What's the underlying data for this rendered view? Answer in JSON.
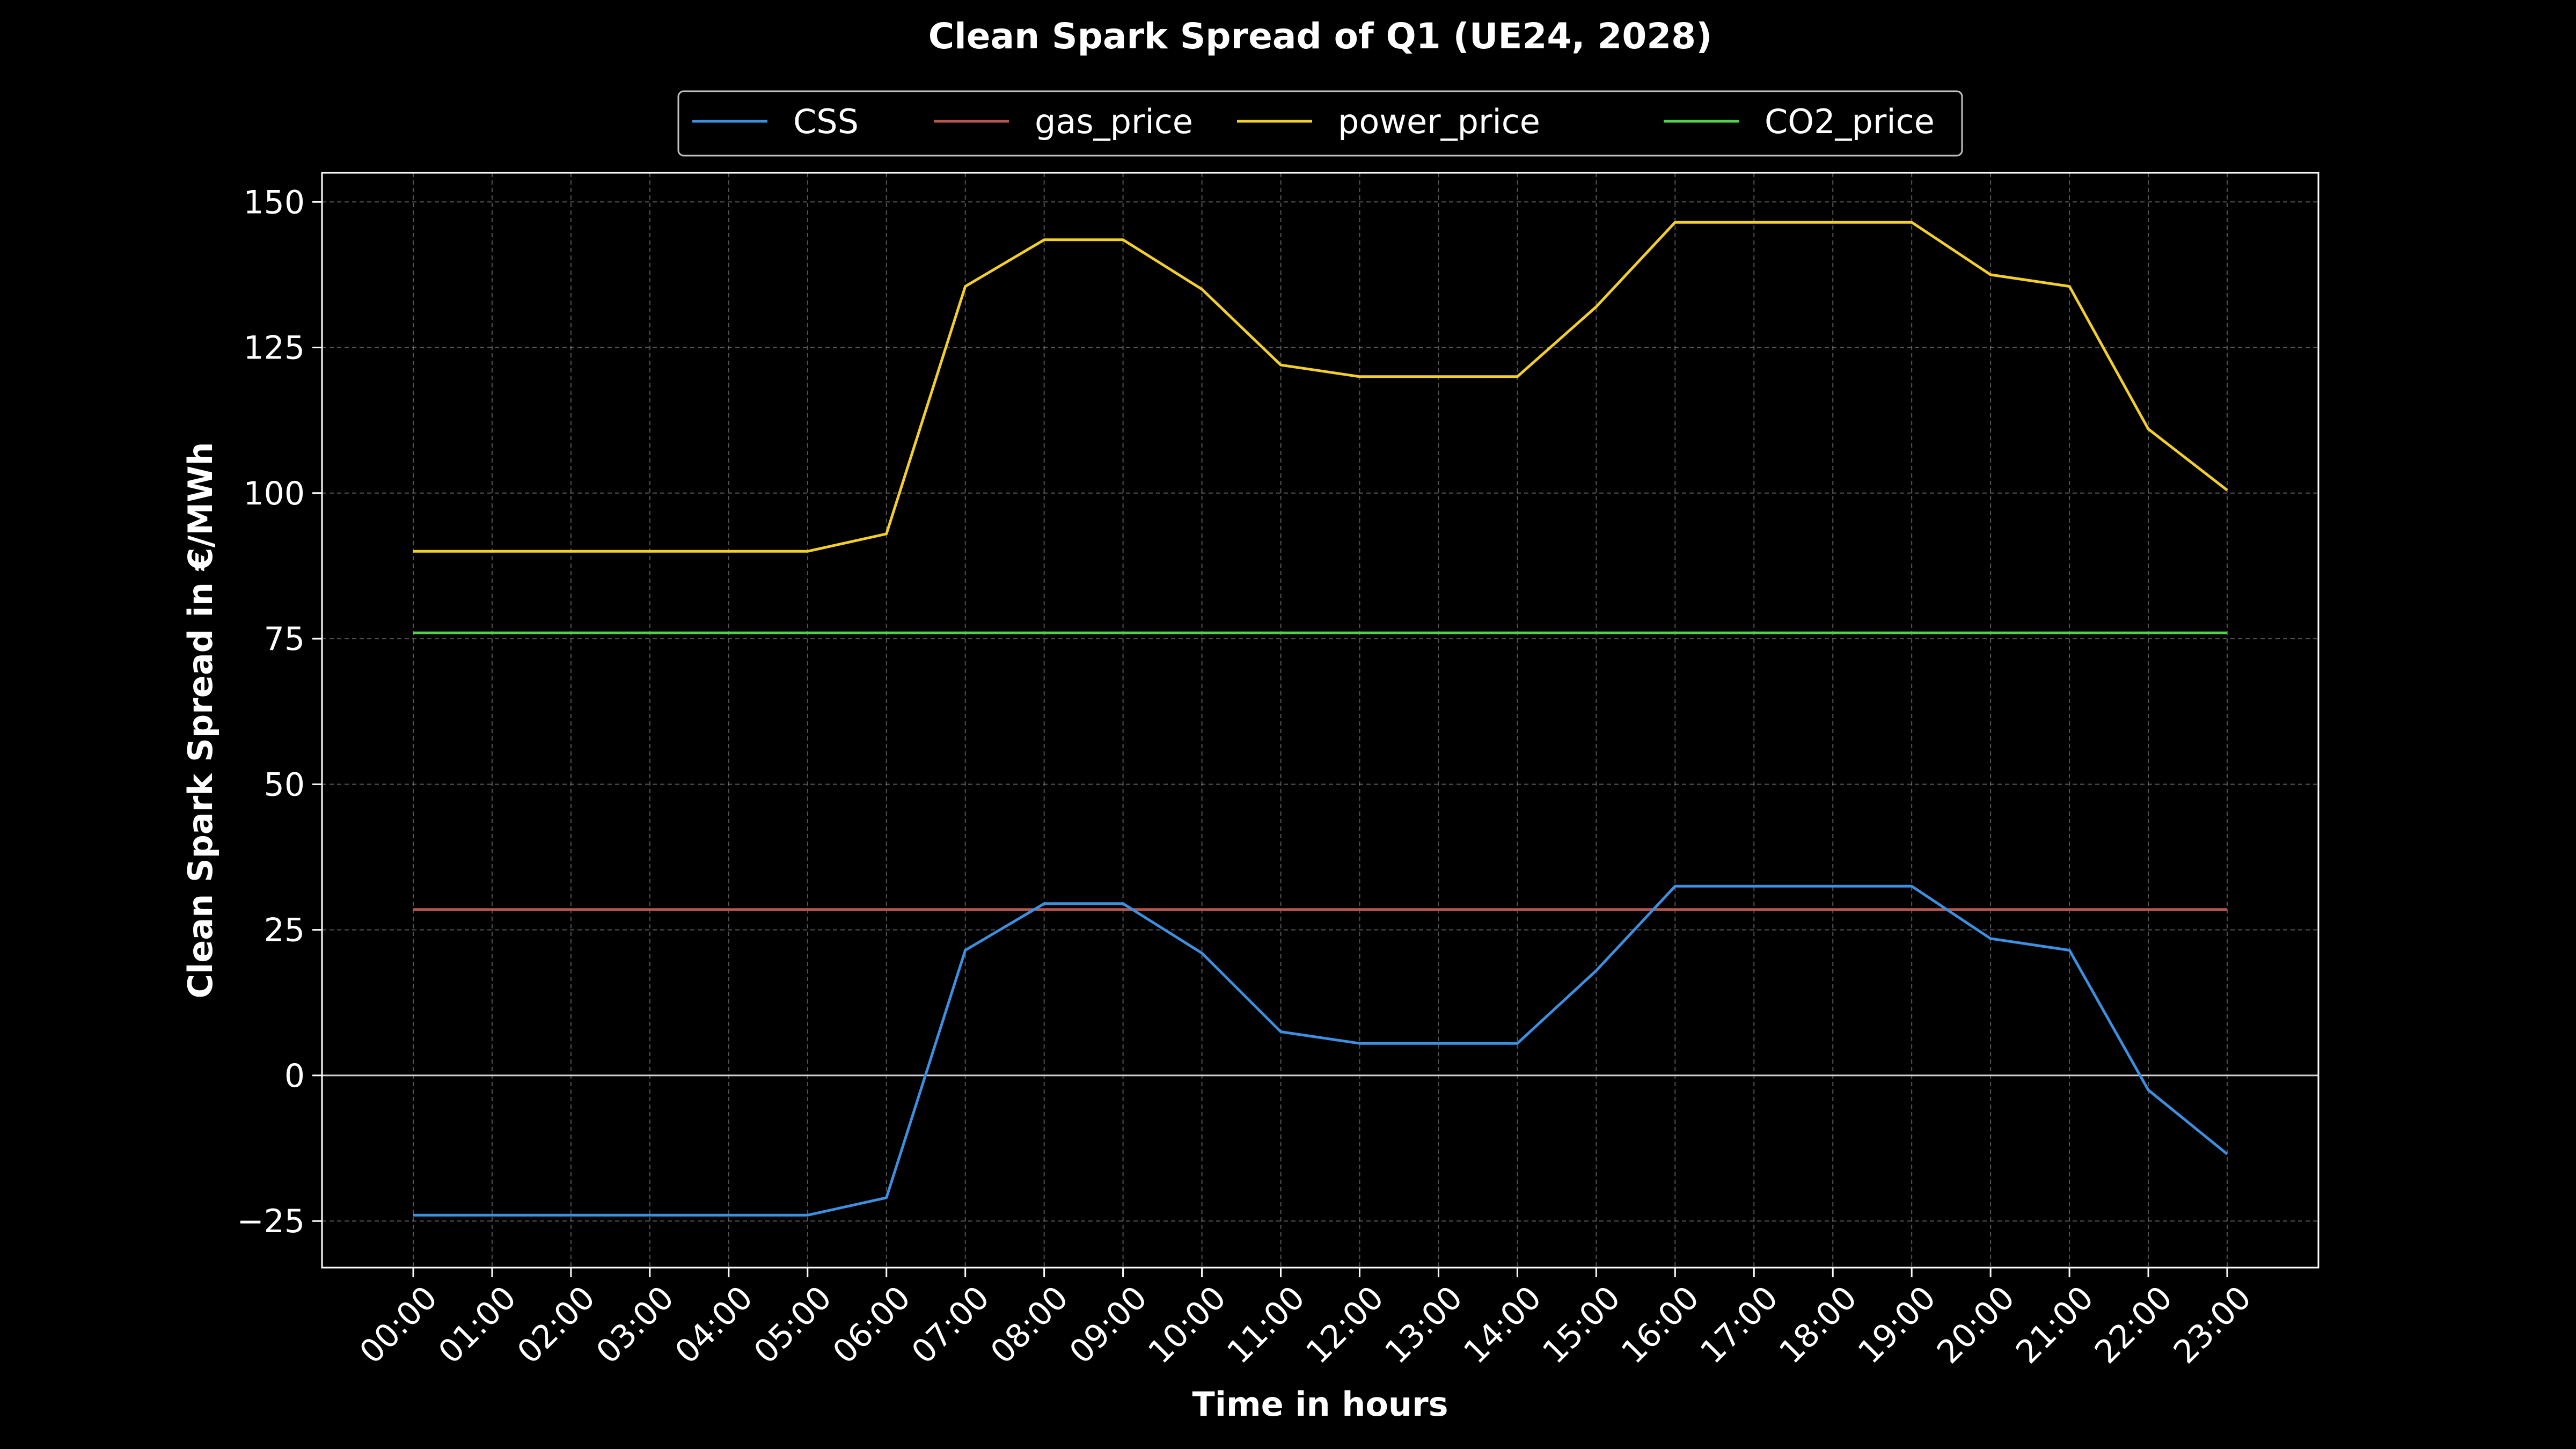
{
  "chart_data": {
    "type": "line",
    "title": "Clean Spark Spread of Q1 (UE24, 2028)",
    "xlabel": "Time in hours",
    "ylabel": "Clean Spark Spread in €/MWh",
    "categories": [
      "00:00",
      "01:00",
      "02:00",
      "03:00",
      "04:00",
      "05:00",
      "06:00",
      "07:00",
      "08:00",
      "09:00",
      "10:00",
      "11:00",
      "12:00",
      "13:00",
      "14:00",
      "15:00",
      "16:00",
      "17:00",
      "18:00",
      "19:00",
      "20:00",
      "21:00",
      "22:00",
      "23:00"
    ],
    "yticks": [
      -25,
      0,
      25,
      50,
      75,
      100,
      125,
      150
    ],
    "ytick_labels": [
      "−25",
      "0",
      "25",
      "50",
      "75",
      "100",
      "125",
      "150"
    ],
    "ylim": [
      -33,
      155
    ],
    "grid": true,
    "zero_line": true,
    "legend_position": "top-center",
    "series": [
      {
        "name": "CSS",
        "color": "#3d8fe0",
        "values": [
          -24,
          -24,
          -24,
          -24,
          -24,
          -24,
          -21,
          21.5,
          29.5,
          29.5,
          21,
          7.5,
          5.5,
          5.5,
          5.5,
          18,
          32.5,
          32.5,
          32.5,
          32.5,
          23.5,
          21.5,
          -2.5,
          -13.5
        ]
      },
      {
        "name": "gas_price",
        "color": "#b5574f",
        "values": [
          28.5,
          28.5,
          28.5,
          28.5,
          28.5,
          28.5,
          28.5,
          28.5,
          28.5,
          28.5,
          28.5,
          28.5,
          28.5,
          28.5,
          28.5,
          28.5,
          28.5,
          28.5,
          28.5,
          28.5,
          28.5,
          28.5,
          28.5,
          28.5
        ]
      },
      {
        "name": "power_price",
        "color": "#f2cf2a",
        "values": [
          90,
          90,
          90,
          90,
          90,
          90,
          93,
          135.5,
          143.5,
          143.5,
          135,
          122,
          120,
          120,
          120,
          132,
          146.5,
          146.5,
          146.5,
          146.5,
          137.5,
          135.5,
          111,
          100.5
        ]
      },
      {
        "name": "CO2_price",
        "color": "#4fd24a",
        "values": [
          76,
          76,
          76,
          76,
          76,
          76,
          76,
          76,
          76,
          76,
          76,
          76,
          76,
          76,
          76,
          76,
          76,
          76,
          76,
          76,
          76,
          76,
          76,
          76
        ]
      }
    ]
  }
}
